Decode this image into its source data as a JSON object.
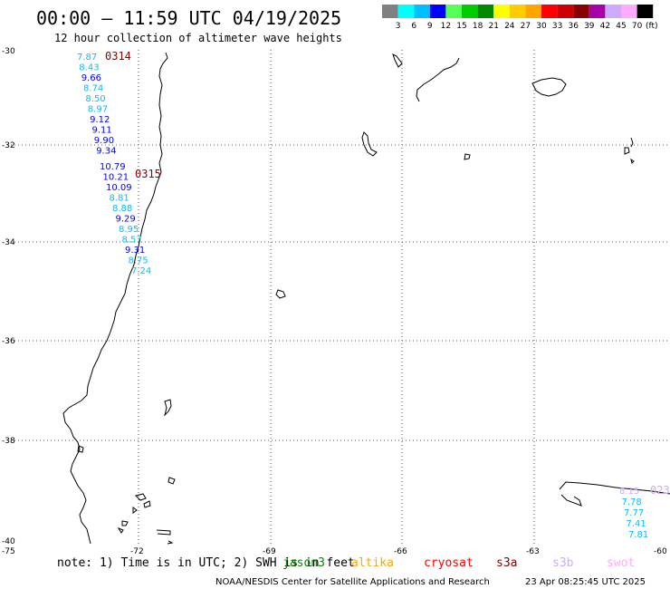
{
  "header": {
    "title": "00:00 – 11:59 UTC 04/19/2025",
    "subtitle": "12 hour collection of altimeter wave heights"
  },
  "legend": {
    "labels": [
      "3",
      "6",
      "9",
      "12",
      "15",
      "18",
      "21",
      "24",
      "27",
      "30",
      "33",
      "36",
      "39",
      "42",
      "45",
      "70"
    ],
    "unit": "(ft)",
    "colors": [
      "#808080",
      "#00ffff",
      "#00bfff",
      "#0000ff",
      "#55ff55",
      "#00cc00",
      "#008800",
      "#ffff00",
      "#ffcc00",
      "#ffa500",
      "#ff0000",
      "#cc0000",
      "#880000",
      "#aa00aa",
      "#ccaaff",
      "#ffaaff",
      "#000000"
    ]
  },
  "axes": {
    "lat_labels": [
      "-30",
      "-32",
      "-34",
      "-36",
      "-38",
      "-40"
    ],
    "lon_labels": [
      "-75",
      "-72",
      "-69",
      "-66",
      "-63",
      "-60"
    ]
  },
  "tracks": [
    {
      "time_label": "0314",
      "time_label_color": "#880000",
      "points": [
        {
          "value": "7.87",
          "color": "#00bfff"
        },
        {
          "value": "8.43",
          "color": "#00bfff"
        },
        {
          "value": "9.66",
          "color": "#0000ff"
        },
        {
          "value": "8.74",
          "color": "#00bfff"
        },
        {
          "value": "8.50",
          "color": "#00bfff"
        },
        {
          "value": "8.97",
          "color": "#00bfff"
        },
        {
          "value": "9.12",
          "color": "#0000ff"
        },
        {
          "value": "9.11",
          "color": "#0000ff"
        },
        {
          "value": "9.90",
          "color": "#0000ff"
        },
        {
          "value": "9.34",
          "color": "#0000ff"
        }
      ]
    },
    {
      "time_label": "0315",
      "time_label_color": "#880000",
      "points": [
        {
          "value": "10.79",
          "color": "#0000ff"
        },
        {
          "value": "10.21",
          "color": "#0000ff"
        },
        {
          "value": "10.09",
          "color": "#0000ff"
        },
        {
          "value": "8.81",
          "color": "#00bfff"
        },
        {
          "value": "8.88",
          "color": "#00bfff"
        },
        {
          "value": "9.29",
          "color": "#0000ff"
        },
        {
          "value": "8.95",
          "color": "#00bfff"
        },
        {
          "value": "8.57",
          "color": "#00bfff"
        },
        {
          "value": "9.31",
          "color": "#0000ff"
        },
        {
          "value": "8.75",
          "color": "#00bfff"
        },
        {
          "value": "7.24",
          "color": "#00bfff"
        }
      ]
    },
    {
      "time_label": "023",
      "time_label_color": "#ccaaff",
      "points": [
        {
          "value": "8.15",
          "color": "#ccaaff"
        },
        {
          "value": "7.78",
          "color": "#00bfff"
        },
        {
          "value": "7.77",
          "color": "#00bfff"
        },
        {
          "value": "7.41",
          "color": "#00bfff"
        },
        {
          "value": "7.81",
          "color": "#00bfff"
        }
      ]
    }
  ],
  "note": {
    "text": "note: 1) Time is in UTC; 2) SWH is in feet",
    "satellites": [
      {
        "name": "jason3",
        "color": "#008800"
      },
      {
        "name": "altika",
        "color": "#ffa500"
      },
      {
        "name": "cryosat",
        "color": "#ff0000"
      },
      {
        "name": "s3a",
        "color": "#880000"
      },
      {
        "name": "s3b",
        "color": "#ccaaff"
      },
      {
        "name": "swot",
        "color": "#ffaaff"
      }
    ]
  },
  "footer": {
    "credit": "NOAA/NESDIS Center for Satellite Applications and Research",
    "timestamp": "23 Apr 08:25:45 UTC 2025"
  }
}
